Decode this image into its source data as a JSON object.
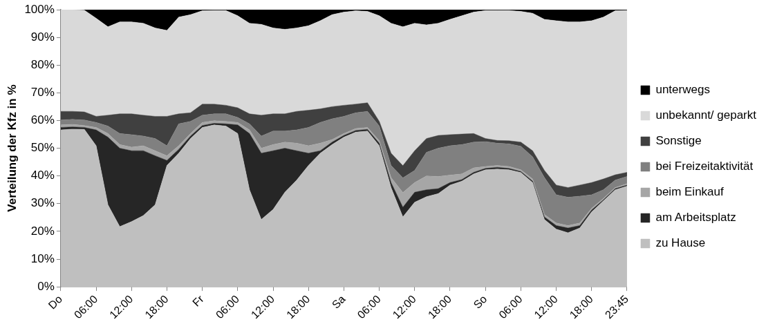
{
  "chart_data": {
    "type": "area",
    "stacked": true,
    "ylabel": "Verteilung der Kfz in %",
    "legend": "right",
    "grid": false,
    "marker": "none",
    "categories": [
      "Do",
      null,
      null,
      "06:00",
      null,
      null,
      "12:00",
      null,
      null,
      "18:00",
      null,
      null,
      "Fr",
      null,
      null,
      "06:00",
      null,
      null,
      "12:00",
      null,
      null,
      "18:00",
      null,
      null,
      "Sa",
      null,
      null,
      "06:00",
      null,
      null,
      "12:00",
      null,
      null,
      "18:00",
      null,
      null,
      "So",
      null,
      null,
      "06:00",
      null,
      null,
      "12:00",
      null,
      null,
      "18:00",
      null,
      null,
      "23:45"
    ],
    "ylim": [
      0,
      100
    ],
    "yticks": [
      {
        "value": 0,
        "label": "0%"
      },
      {
        "value": 10,
        "label": "10%"
      },
      {
        "value": 20,
        "label": "20%"
      },
      {
        "value": 30,
        "label": "30%"
      },
      {
        "value": 40,
        "label": "40%"
      },
      {
        "value": 50,
        "label": "50%"
      },
      {
        "value": 60,
        "label": "60%"
      },
      {
        "value": 70,
        "label": "70%"
      },
      {
        "value": 80,
        "label": "80%"
      },
      {
        "value": 90,
        "label": "90%"
      },
      {
        "value": 100,
        "label": "100%"
      }
    ],
    "series": [
      {
        "name": "zu Hause",
        "color": "#bfbfbf",
        "values": [
          56.6,
          56.9,
          56.8,
          50.9,
          29.6,
          21.7,
          23.5,
          25.7,
          29.6,
          43.8,
          48.2,
          53.5,
          57.5,
          58.4,
          58.0,
          55.3,
          35.0,
          24.3,
          27.9,
          34.1,
          38.5,
          43.8,
          48.2,
          51.3,
          54.0,
          55.8,
          56.2,
          50.9,
          35.8,
          25.2,
          30.5,
          32.5,
          33.6,
          36.7,
          38.1,
          40.7,
          42.2,
          42.5,
          42.2,
          41.2,
          37.6,
          24.3,
          20.8,
          19.5,
          21.2,
          27.0,
          31.0,
          35.0,
          36.3
        ]
      },
      {
        "name": "am Arbeitsplatz",
        "color": "#262626",
        "values": [
          0.9,
          0.8,
          0.7,
          5.7,
          24.4,
          28.3,
          25.6,
          23.4,
          17.7,
          1.8,
          1.4,
          0.9,
          0.7,
          0.6,
          0.8,
          3.1,
          20.3,
          23.9,
          21.2,
          15.9,
          10.6,
          4.4,
          0.9,
          0.9,
          0.6,
          0.6,
          0.6,
          0.9,
          1.8,
          3.5,
          3.6,
          2.5,
          1.8,
          0.9,
          0.6,
          0.6,
          0.5,
          0.6,
          0.5,
          0.4,
          0.5,
          0.9,
          1.3,
          1.7,
          0.9,
          0.7,
          0.4,
          0.4,
          0.4
        ]
      },
      {
        "name": "beim Einkauf",
        "color": "#a6a6a6",
        "values": [
          0.9,
          0.9,
          0.7,
          0.9,
          1.3,
          1.3,
          1.3,
          1.8,
          1.8,
          1.7,
          1.3,
          0.9,
          1.1,
          0.9,
          0.9,
          0.9,
          1.3,
          1.8,
          2.2,
          2.2,
          2.7,
          2.7,
          2.7,
          0.9,
          0.7,
          0.7,
          0.7,
          0.9,
          1.8,
          5.3,
          3.5,
          5.0,
          4.4,
          2.7,
          2.0,
          1.6,
          0.7,
          0.7,
          0.7,
          0.6,
          0.8,
          0.9,
          0.9,
          0.9,
          0.9,
          0.6,
          0.5,
          0.4,
          0.5
        ]
      },
      {
        "name": "bei Freizeitaktivität",
        "color": "#808080",
        "values": [
          1.8,
          1.8,
          2.0,
          1.8,
          2.7,
          4.0,
          4.5,
          3.5,
          4.4,
          3.6,
          7.9,
          4.4,
          2.6,
          2.5,
          2.7,
          1.8,
          2.2,
          4.4,
          4.9,
          4.0,
          4.8,
          6.6,
          7.5,
          7.5,
          6.2,
          5.7,
          5.8,
          5.3,
          4.4,
          5.3,
          4.4,
          8.5,
          10.2,
          10.6,
          10.6,
          9.3,
          9.0,
          8.0,
          8.2,
          8.5,
          8.0,
          13.3,
          10.2,
          10.2,
          9.7,
          4.9,
          3.1,
          2.7,
          2.6
        ]
      },
      {
        "name": "Sonstige",
        "color": "#404040",
        "values": [
          3.1,
          2.9,
          2.9,
          2.2,
          3.9,
          7.1,
          7.5,
          7.5,
          8.0,
          10.6,
          3.6,
          3.1,
          4.0,
          3.5,
          3.1,
          3.5,
          3.6,
          7.5,
          6.2,
          6.2,
          6.7,
          6.2,
          4.9,
          4.4,
          4.0,
          3.1,
          3.1,
          1.7,
          4.4,
          4.4,
          7.1,
          5.0,
          4.6,
          4.0,
          3.8,
          3.1,
          1.1,
          1.0,
          1.1,
          1.5,
          2.2,
          2.6,
          3.5,
          3.5,
          4.0,
          4.4,
          3.9,
          1.9,
          1.5
        ]
      },
      {
        "name": "unbekannt/ geparkt",
        "color": "#d9d9d9",
        "values": [
          36.7,
          36.7,
          36.7,
          35.4,
          31.9,
          33.2,
          33.2,
          33.2,
          31.9,
          31.0,
          34.9,
          35.4,
          33.7,
          33.8,
          34.2,
          33.2,
          32.7,
          32.8,
          31.0,
          30.5,
          30.1,
          30.5,
          31.8,
          33.2,
          33.6,
          33.7,
          33.0,
          38.1,
          46.9,
          50.1,
          46.0,
          41.0,
          40.5,
          41.6,
          42.7,
          43.8,
          46.2,
          46.9,
          47.0,
          47.2,
          49.6,
          54.5,
          59.3,
          59.8,
          58.9,
          58.4,
          58.4,
          59.2,
          58.4
        ]
      },
      {
        "name": "unterwegs",
        "color": "#000000",
        "values": [
          0,
          0,
          0.2,
          3.1,
          6.2,
          4.4,
          4.4,
          4.9,
          6.6,
          7.5,
          2.7,
          1.8,
          0.4,
          0.3,
          0.3,
          2.2,
          4.9,
          5.3,
          6.6,
          7.1,
          6.6,
          5.8,
          4.0,
          1.8,
          0.9,
          0.4,
          0.6,
          2.2,
          4.9,
          6.2,
          4.9,
          5.5,
          4.9,
          3.5,
          2.2,
          0.9,
          0.3,
          0.3,
          0.3,
          0.6,
          1.3,
          3.5,
          4.0,
          4.4,
          4.4,
          4.0,
          2.7,
          0.4,
          0.3
        ]
      }
    ]
  }
}
